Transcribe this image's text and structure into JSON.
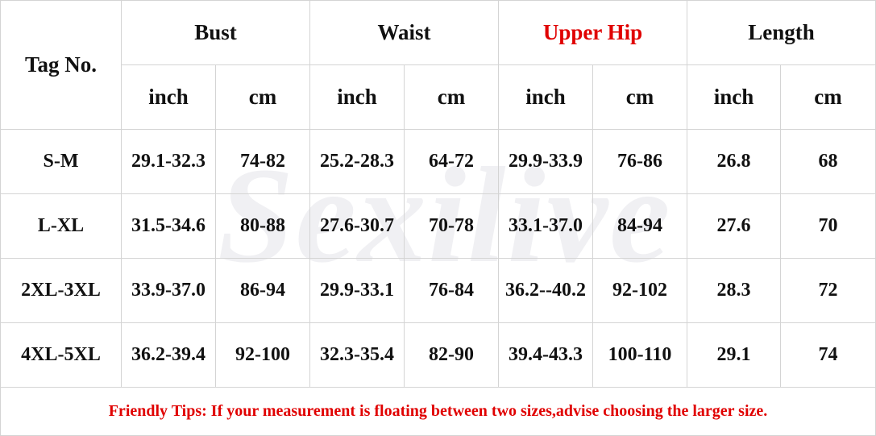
{
  "watermark": "Sexilive",
  "header": {
    "tag_no": "Tag No.",
    "groups": [
      {
        "label": "Bust",
        "units": [
          "inch",
          "cm"
        ]
      },
      {
        "label": "Waist",
        "units": [
          "inch",
          "cm"
        ]
      },
      {
        "label": "Upper Hip",
        "units": [
          "inch",
          "cm"
        ],
        "color": "#e00000"
      },
      {
        "label": "Length",
        "units": [
          "inch",
          "cm"
        ]
      }
    ]
  },
  "table": {
    "rows": [
      [
        "S-M",
        "29.1-32.3",
        "74-82",
        "25.2-28.3",
        "64-72",
        "29.9-33.9",
        "76-86",
        "26.8",
        "68"
      ],
      [
        "L-XL",
        "31.5-34.6",
        "80-88",
        "27.6-30.7",
        "70-78",
        "33.1-37.0",
        "84-94",
        "27.6",
        "70"
      ],
      [
        "2XL-3XL",
        "33.9-37.0",
        "86-94",
        "29.9-33.1",
        "76-84",
        "36.2--40.2",
        "92-102",
        "28.3",
        "72"
      ],
      [
        "4XL-5XL",
        "36.2-39.4",
        "92-100",
        "32.3-35.4",
        "82-90",
        "39.4-43.3",
        "100-110",
        "29.1",
        "74"
      ]
    ]
  },
  "footer": {
    "tip": "Friendly Tips: If your measurement is floating between two sizes,advise choosing the larger size."
  }
}
